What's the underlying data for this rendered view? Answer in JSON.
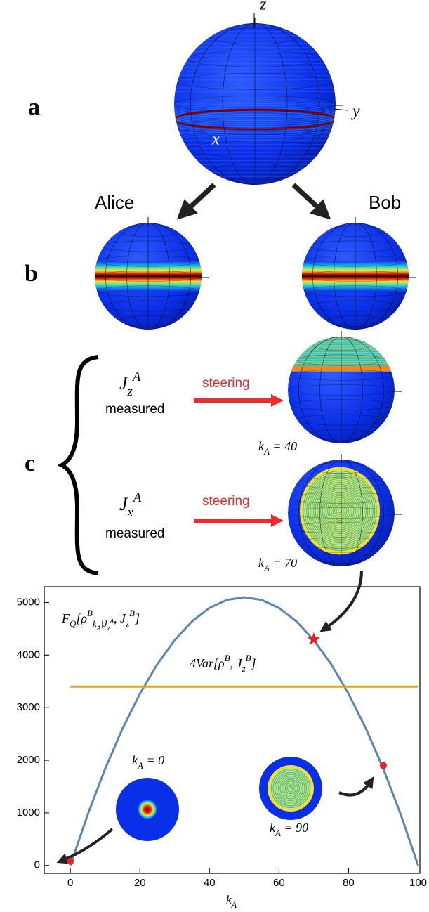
{
  "panels": {
    "a": {
      "label": "a",
      "axes": [
        "z",
        "y",
        "x"
      ]
    },
    "b": {
      "label": "b",
      "left": "Alice",
      "right": "Bob"
    },
    "c": {
      "label": "c",
      "rows": [
        {
          "observable": "J_z^A",
          "note": "measured",
          "action": "steering",
          "result": "k_A = 40"
        },
        {
          "observable": "J_x^A",
          "note": "measured",
          "action": "steering",
          "result": "k_A = 70"
        }
      ]
    }
  },
  "chart_data": {
    "type": "line",
    "x_label": "k_A",
    "x": [
      0,
      5,
      10,
      15,
      20,
      25,
      30,
      35,
      40,
      45,
      50,
      55,
      60,
      65,
      70,
      75,
      80,
      85,
      90,
      95,
      100
    ],
    "series": [
      {
        "name": "F_Q[ρ^B_{k_A|J_z^A}, J_z^B]",
        "color": "#5b85b5",
        "values": [
          0,
          969,
          1836,
          2601,
          3264,
          3825,
          4284,
          4641,
          4896,
          5049,
          5100,
          5049,
          4896,
          4641,
          4284,
          3825,
          3264,
          2601,
          1836,
          969,
          0
        ]
      },
      {
        "name": "4Var[ρ^B, J_z^B]",
        "color": "#e0a02c",
        "values": [
          3400,
          3400,
          3400,
          3400,
          3400,
          3400,
          3400,
          3400,
          3400,
          3400,
          3400,
          3400,
          3400,
          3400,
          3400,
          3400,
          3400,
          3400,
          3400,
          3400,
          3400
        ]
      }
    ],
    "points": [
      {
        "x": 0,
        "y": 80,
        "marker": "dot"
      },
      {
        "x": 70,
        "y": 4300,
        "marker": "star"
      },
      {
        "x": 90,
        "y": 1900,
        "marker": "dot"
      }
    ],
    "point_color": "#e8202a",
    "insets": [
      "k_A = 0",
      "k_A = 90"
    ],
    "xlim": [
      -7.5,
      100.5
    ],
    "ylim": [
      -150,
      5300
    ],
    "xticks": [
      0,
      20,
      40,
      60,
      80,
      100
    ],
    "yticks": [
      0,
      1000,
      2000,
      3000,
      4000,
      5000
    ]
  }
}
